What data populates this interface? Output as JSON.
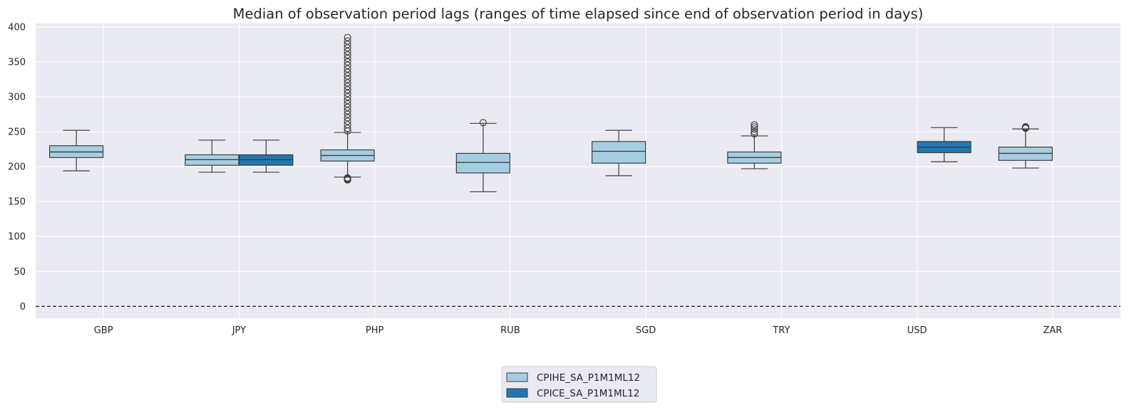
{
  "chart_data": {
    "type": "boxplot",
    "title": "Median of observation period lags (ranges of time elapsed since end of observation period in days)",
    "xlabel": "",
    "ylabel": "",
    "ylim": [
      -17,
      405
    ],
    "yticks": [
      0,
      50,
      100,
      150,
      200,
      250,
      300,
      350,
      400
    ],
    "categories": [
      "GBP",
      "JPY",
      "PHP",
      "RUB",
      "SGD",
      "TRY",
      "USD",
      "ZAR"
    ],
    "reference_line": {
      "y": 0,
      "style": "dashed",
      "color": "#000000"
    },
    "legend": {
      "placement": "bottom-center"
    },
    "series": [
      {
        "name": "CPIHE_SA_P1M1ML12",
        "color": "#a6cee3",
        "boxes": [
          {
            "category": "GBP",
            "whislo": 194,
            "q1": 213,
            "med": 221,
            "q3": 230,
            "whishi": 252,
            "fliers": []
          },
          {
            "category": "JPY",
            "whislo": 192,
            "q1": 202,
            "med": 210,
            "q3": 217,
            "whishi": 238,
            "fliers": []
          },
          {
            "category": "PHP",
            "whislo": 185,
            "q1": 208,
            "med": 216,
            "q3": 224,
            "whishi": 249,
            "fliers": [
              181,
              182,
              183,
              184,
              251,
              255,
              260,
              265,
              270,
              275,
              280,
              285,
              290,
              295,
              300,
              305,
              310,
              315,
              320,
              325,
              330,
              335,
              340,
              345,
              350,
              355,
              360,
              365,
              370,
              375,
              380,
              385
            ]
          },
          {
            "category": "RUB",
            "whislo": 164,
            "q1": 191,
            "med": 206,
            "q3": 219,
            "whishi": 262,
            "fliers": [
              263
            ]
          },
          {
            "category": "SGD",
            "whislo": 187,
            "q1": 205,
            "med": 222,
            "q3": 236,
            "whishi": 252,
            "fliers": []
          },
          {
            "category": "TRY",
            "whislo": 197,
            "q1": 205,
            "med": 213,
            "q3": 221,
            "whishi": 244,
            "fliers": [
              247,
              250,
              254,
              257,
              260
            ]
          },
          {
            "category": "ZAR",
            "whislo": 198,
            "q1": 209,
            "med": 219,
            "q3": 228,
            "whishi": 254,
            "fliers": [
              255,
              256,
              257
            ]
          }
        ]
      },
      {
        "name": "CPICE_SA_P1M1ML12",
        "color": "#1f78b4",
        "boxes": [
          {
            "category": "JPY",
            "whislo": 192,
            "q1": 202,
            "med": 210,
            "q3": 217,
            "whishi": 238,
            "fliers": []
          },
          {
            "category": "USD",
            "whislo": 207,
            "q1": 220,
            "med": 228,
            "q3": 236,
            "whishi": 256,
            "fliers": []
          }
        ]
      }
    ]
  }
}
